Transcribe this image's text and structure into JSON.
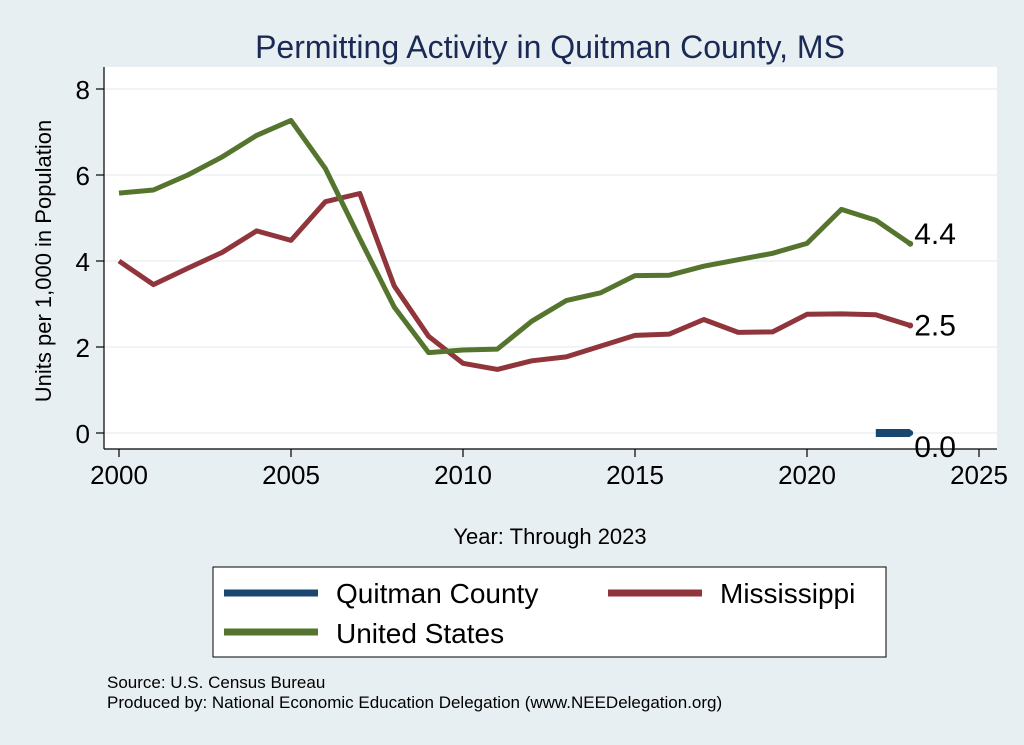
{
  "chart_data": {
    "type": "line",
    "title": "Permitting Activity in Quitman County, MS",
    "xlabel": "Year: Through 2023",
    "ylabel": "Units per 1,000 in Population",
    "xlim": [
      2000,
      2025
    ],
    "ylim": [
      0,
      8
    ],
    "xticks": [
      2000,
      2005,
      2010,
      2015,
      2020,
      2025
    ],
    "yticks": [
      0,
      2,
      4,
      6,
      8
    ],
    "grid": true,
    "series": [
      {
        "name": "Quitman County",
        "color": "#1a476f",
        "x": [
          2022,
          2023
        ],
        "values": [
          0,
          0
        ],
        "end_label": "0.0"
      },
      {
        "name": "Mississippi",
        "color": "#90353b",
        "x": [
          2000,
          2001,
          2002,
          2003,
          2004,
          2005,
          2006,
          2007,
          2008,
          2009,
          2010,
          2011,
          2012,
          2013,
          2014,
          2015,
          2016,
          2017,
          2018,
          2019,
          2020,
          2021,
          2022,
          2023
        ],
        "values": [
          4.0,
          3.45,
          3.83,
          4.2,
          4.7,
          4.48,
          5.38,
          5.57,
          3.42,
          2.25,
          1.62,
          1.48,
          1.68,
          1.77,
          2.02,
          2.27,
          2.3,
          2.64,
          2.34,
          2.35,
          2.76,
          2.77,
          2.75,
          2.5
        ],
        "end_label": "2.5"
      },
      {
        "name": "United States",
        "color": "#55752f",
        "x": [
          2000,
          2001,
          2002,
          2003,
          2004,
          2005,
          2006,
          2007,
          2008,
          2009,
          2010,
          2011,
          2012,
          2013,
          2014,
          2015,
          2016,
          2017,
          2018,
          2019,
          2020,
          2021,
          2022,
          2023
        ],
        "values": [
          5.58,
          5.65,
          6.0,
          6.42,
          6.92,
          7.27,
          6.15,
          4.52,
          2.93,
          1.87,
          1.93,
          1.95,
          2.6,
          3.08,
          3.26,
          3.66,
          3.67,
          3.88,
          4.03,
          4.18,
          4.41,
          5.2,
          4.95,
          4.4
        ],
        "end_label": "4.4"
      }
    ],
    "legend_position": "bottom",
    "legend_rows": [
      [
        "Quitman County",
        "Mississippi"
      ],
      [
        "United States"
      ]
    ]
  },
  "footer": {
    "source": "Source: U.S. Census Bureau",
    "produced_by": "Produced by: National Economic Education Delegation (www.NEEDelegation.org)"
  }
}
